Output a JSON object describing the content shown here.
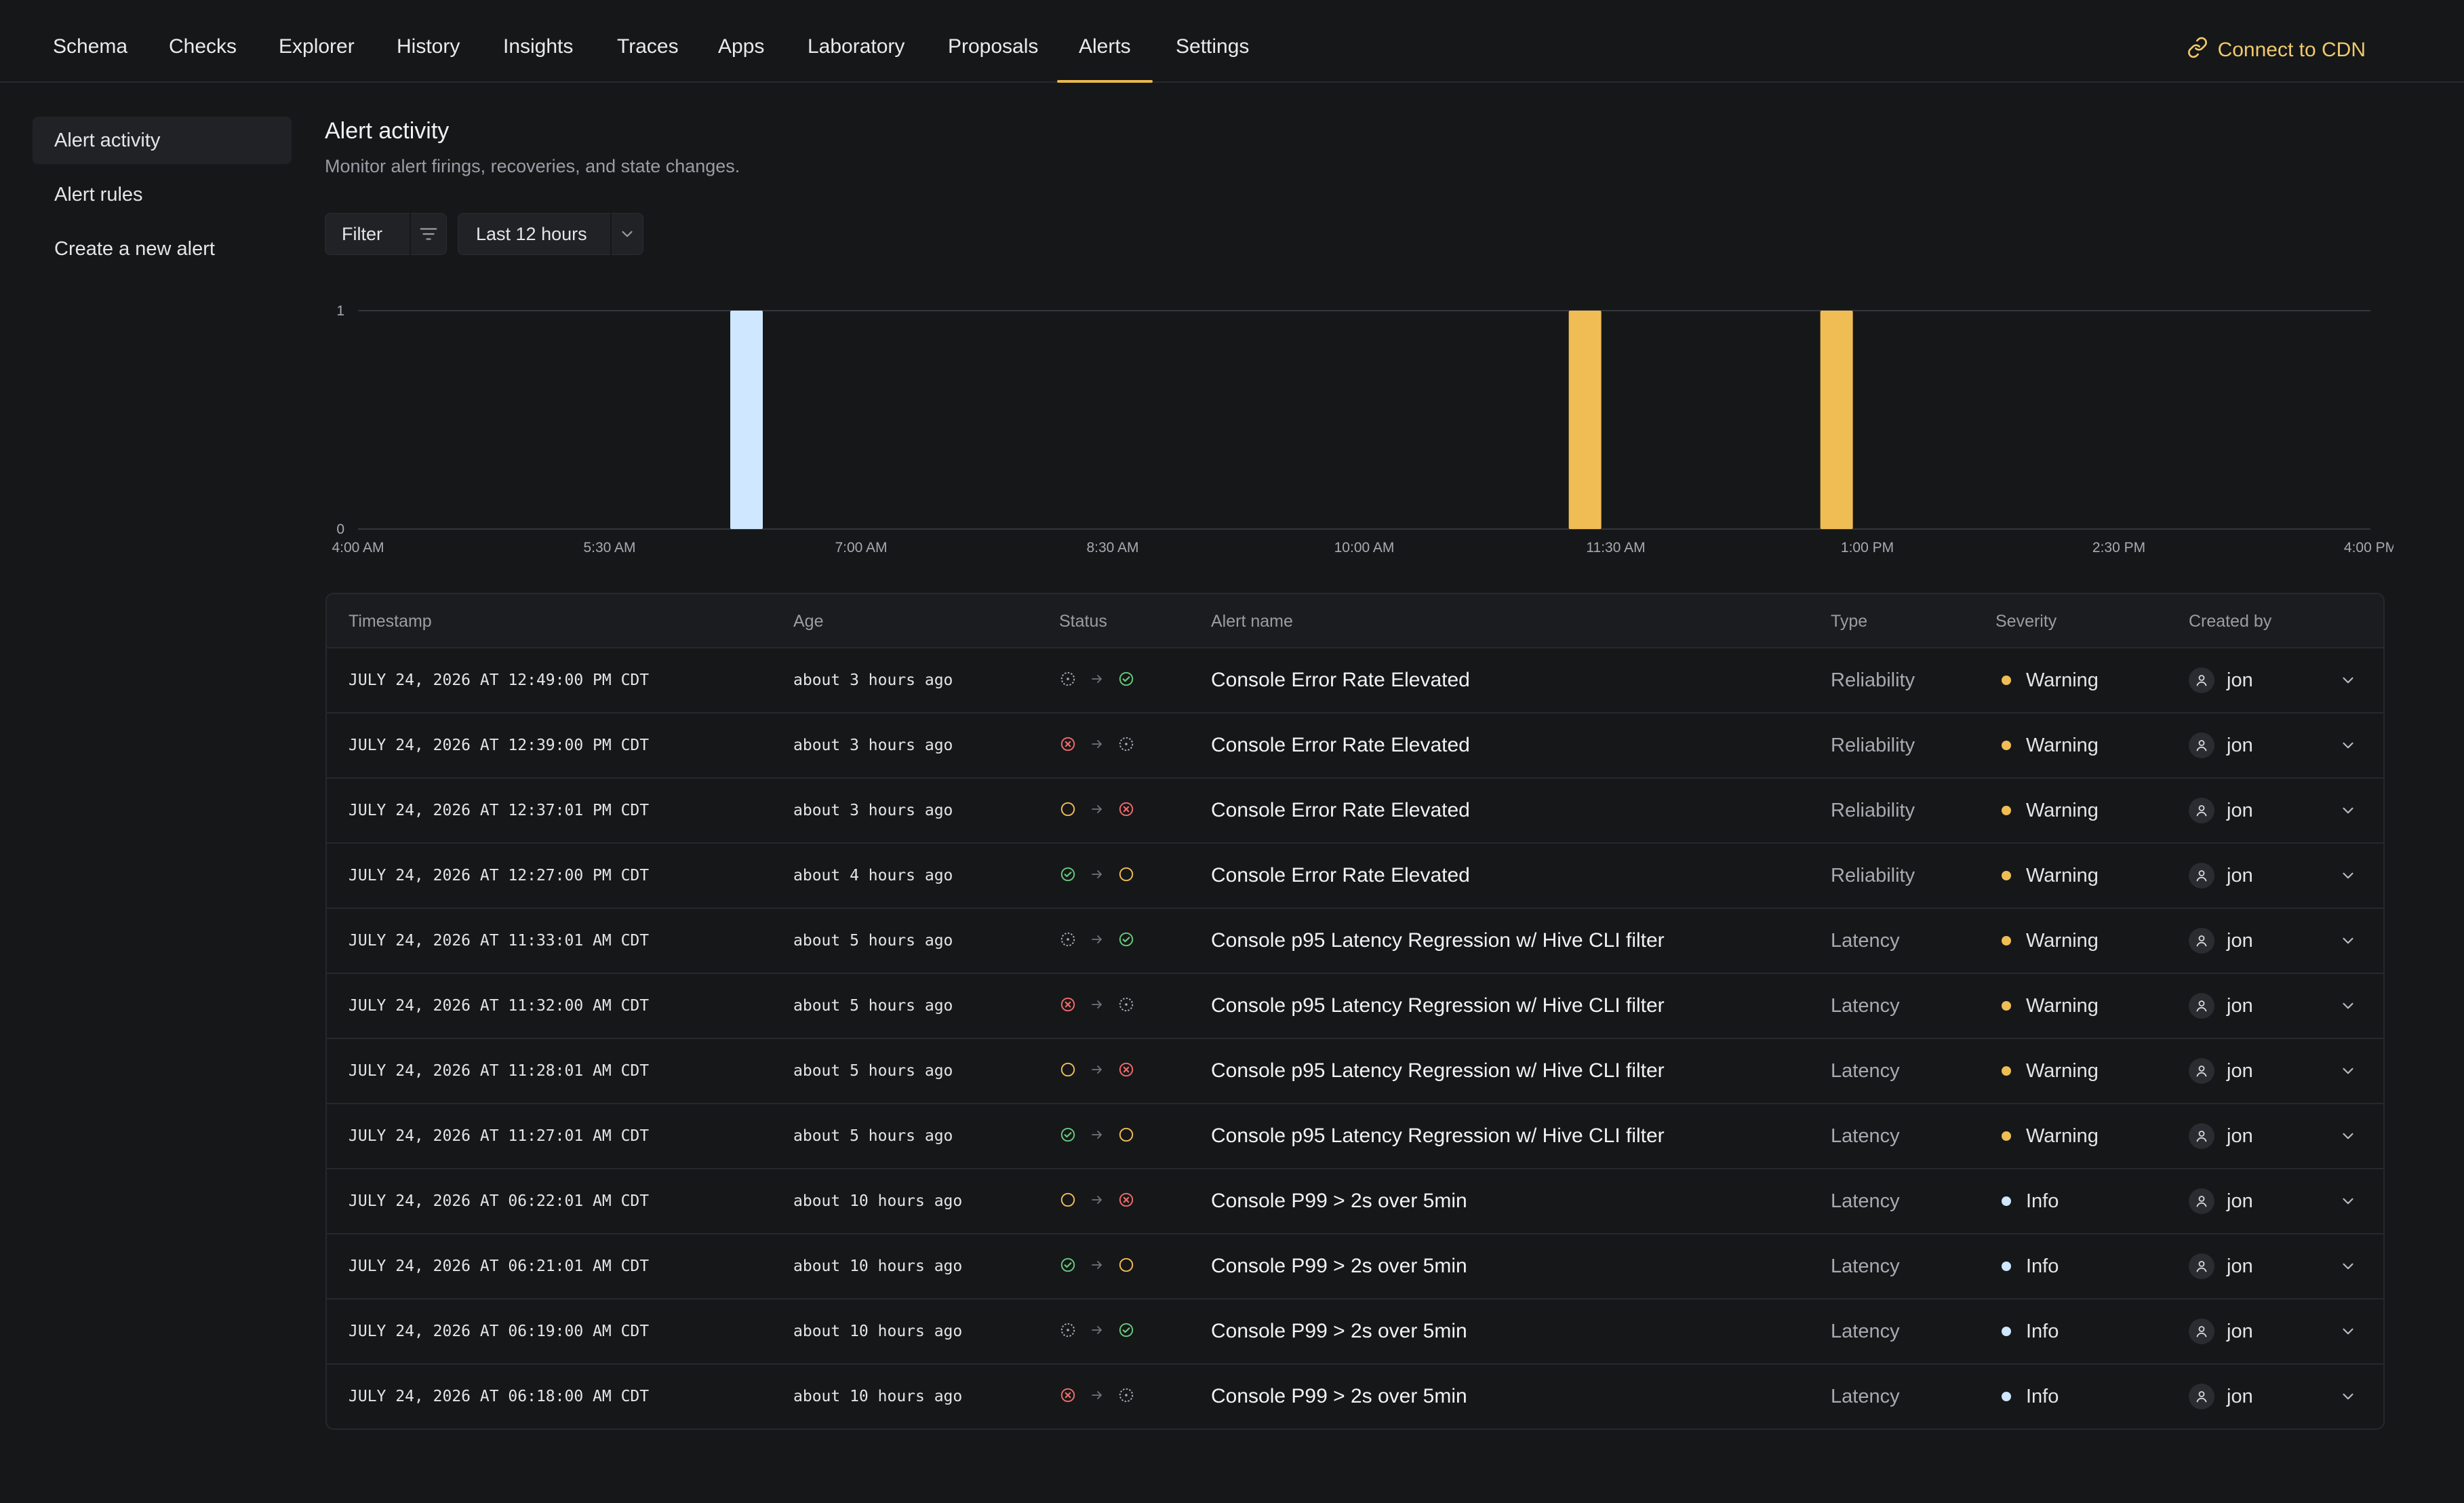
{
  "nav": {
    "tabs": [
      "Schema",
      "Checks",
      "Explorer",
      "History",
      "Insights",
      "Traces",
      "Apps",
      "Laboratory",
      "Proposals",
      "Alerts",
      "Settings"
    ],
    "active": "Alerts",
    "cdn_label": "Connect to CDN"
  },
  "sidebar": {
    "items": [
      {
        "label": "Alert activity",
        "active": true
      },
      {
        "label": "Alert rules",
        "active": false
      },
      {
        "label": "Create a new alert",
        "active": false
      }
    ]
  },
  "page": {
    "title": "Alert activity",
    "subtitle": "Monitor alert firings, recoveries, and state changes.",
    "filter_label": "Filter",
    "range_label": "Last 12 hours"
  },
  "chart_data": {
    "type": "bar",
    "x_ticks": [
      "4:00 AM",
      "5:30 AM",
      "7:00 AM",
      "8:30 AM",
      "10:00 AM",
      "11:30 AM",
      "1:00 PM",
      "2:30 PM",
      "4:00 PM"
    ],
    "y_ticks": [
      "0",
      "1"
    ],
    "ylim": [
      0,
      1
    ],
    "bars": [
      {
        "x": "6:19 AM",
        "value": 1,
        "color": "#cfe7ff"
      },
      {
        "x": "11:19 AM",
        "value": 1,
        "color": "#f0bd55"
      },
      {
        "x": "12:49 PM",
        "value": 1,
        "color": "#f0bd55"
      }
    ],
    "grid": "top gridline only"
  },
  "colors": {
    "accent": "#e9b94d",
    "warning": "#f0bd55",
    "info": "#cfe7ff",
    "ok": "#67c97c",
    "error": "#f06b6b",
    "pending": "#aeb2b8"
  },
  "table": {
    "headers": [
      "Timestamp",
      "Age",
      "Status",
      "Alert name",
      "Type",
      "Severity",
      "Created by"
    ],
    "rows": [
      {
        "timestamp": "JULY 24, 2026 AT 12:49:00 PM CDT",
        "age": "about 3 hours ago",
        "from": "pending",
        "to": "ok",
        "name": "Console Error Rate Elevated",
        "type": "Reliability",
        "severity": "Warning",
        "user": "jon"
      },
      {
        "timestamp": "JULY 24, 2026 AT 12:39:00 PM CDT",
        "age": "about 3 hours ago",
        "from": "error",
        "to": "pending",
        "name": "Console Error Rate Elevated",
        "type": "Reliability",
        "severity": "Warning",
        "user": "jon"
      },
      {
        "timestamp": "JULY 24, 2026 AT 12:37:01 PM CDT",
        "age": "about 3 hours ago",
        "from": "warn",
        "to": "error",
        "name": "Console Error Rate Elevated",
        "type": "Reliability",
        "severity": "Warning",
        "user": "jon"
      },
      {
        "timestamp": "JULY 24, 2026 AT 12:27:00 PM CDT",
        "age": "about 4 hours ago",
        "from": "ok",
        "to": "warn",
        "name": "Console Error Rate Elevated",
        "type": "Reliability",
        "severity": "Warning",
        "user": "jon"
      },
      {
        "timestamp": "JULY 24, 2026 AT 11:33:01 AM CDT",
        "age": "about 5 hours ago",
        "from": "pending",
        "to": "ok",
        "name": "Console p95 Latency Regression w/ Hive CLI filter",
        "type": "Latency",
        "severity": "Warning",
        "user": "jon"
      },
      {
        "timestamp": "JULY 24, 2026 AT 11:32:00 AM CDT",
        "age": "about 5 hours ago",
        "from": "error",
        "to": "pending",
        "name": "Console p95 Latency Regression w/ Hive CLI filter",
        "type": "Latency",
        "severity": "Warning",
        "user": "jon"
      },
      {
        "timestamp": "JULY 24, 2026 AT 11:28:01 AM CDT",
        "age": "about 5 hours ago",
        "from": "warn",
        "to": "error",
        "name": "Console p95 Latency Regression w/ Hive CLI filter",
        "type": "Latency",
        "severity": "Warning",
        "user": "jon"
      },
      {
        "timestamp": "JULY 24, 2026 AT 11:27:01 AM CDT",
        "age": "about 5 hours ago",
        "from": "ok",
        "to": "warn",
        "name": "Console p95 Latency Regression w/ Hive CLI filter",
        "type": "Latency",
        "severity": "Warning",
        "user": "jon"
      },
      {
        "timestamp": "JULY 24, 2026 AT 06:22:01 AM CDT",
        "age": "about 10 hours ago",
        "from": "warn",
        "to": "error",
        "name": "Console P99 > 2s over 5min",
        "type": "Latency",
        "severity": "Info",
        "user": "jon"
      },
      {
        "timestamp": "JULY 24, 2026 AT 06:21:01 AM CDT",
        "age": "about 10 hours ago",
        "from": "ok",
        "to": "warn",
        "name": "Console P99 > 2s over 5min",
        "type": "Latency",
        "severity": "Info",
        "user": "jon"
      },
      {
        "timestamp": "JULY 24, 2026 AT 06:19:00 AM CDT",
        "age": "about 10 hours ago",
        "from": "pending",
        "to": "ok",
        "name": "Console P99 > 2s over 5min",
        "type": "Latency",
        "severity": "Info",
        "user": "jon"
      },
      {
        "timestamp": "JULY 24, 2026 AT 06:18:00 AM CDT",
        "age": "about 10 hours ago",
        "from": "error",
        "to": "pending",
        "name": "Console P99 > 2s over 5min",
        "type": "Latency",
        "severity": "Info",
        "user": "jon"
      }
    ]
  }
}
